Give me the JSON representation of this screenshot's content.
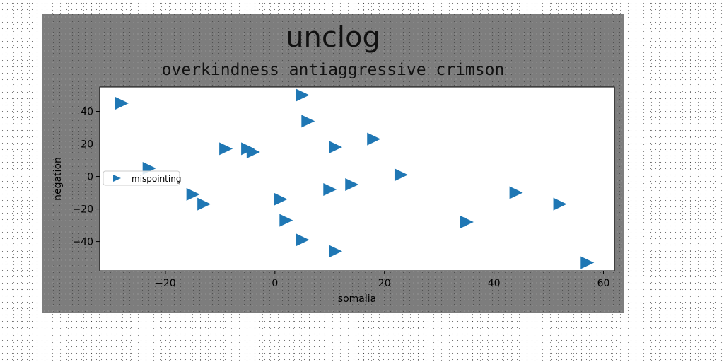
{
  "chart_data": {
    "type": "scatter",
    "title": "unclog",
    "subtitle": "overkindness antiaggressive crimson",
    "xlabel": "somalia",
    "ylabel": "negation",
    "xlim": [
      -32,
      62
    ],
    "ylim": [
      -58,
      55
    ],
    "xticks": [
      -20,
      0,
      20,
      40,
      60
    ],
    "yticks": [
      -40,
      -20,
      0,
      20,
      40
    ],
    "grid": false,
    "legend_position": "center-left",
    "marker": "triangle-right",
    "series": [
      {
        "name": "mispointing",
        "color": "#1f77b4",
        "points": [
          [
            -28,
            45
          ],
          [
            -23,
            5
          ],
          [
            -15,
            -11
          ],
          [
            -13,
            -17
          ],
          [
            -9,
            17
          ],
          [
            -5,
            17
          ],
          [
            -4,
            15
          ],
          [
            1,
            -14
          ],
          [
            2,
            -27
          ],
          [
            5,
            50
          ],
          [
            6,
            34
          ],
          [
            5,
            -39
          ],
          [
            10,
            -8
          ],
          [
            11,
            18
          ],
          [
            11,
            -46
          ],
          [
            14,
            -5
          ],
          [
            18,
            23
          ],
          [
            23,
            1
          ],
          [
            35,
            -28
          ],
          [
            44,
            -10
          ],
          [
            52,
            -17
          ],
          [
            57,
            -53
          ]
        ]
      }
    ]
  }
}
